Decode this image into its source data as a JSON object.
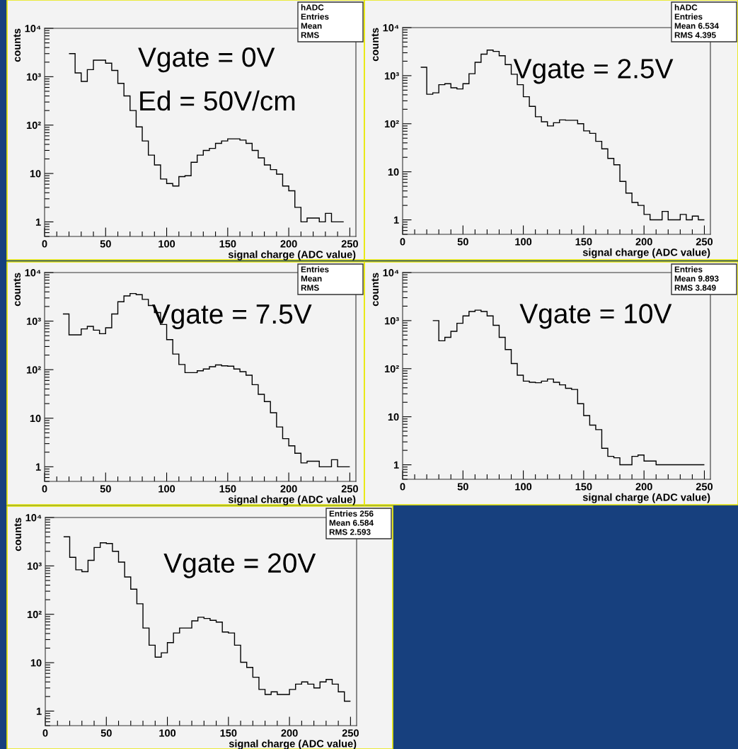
{
  "chart_data": [
    {
      "type": "histogram",
      "title": "Vgate = 0V",
      "subtitle": "Ed = 50V/cm",
      "xlabel": "signal charge (ADC value)",
      "ylabel": "counts",
      "log": "y",
      "grid": false,
      "legend": false,
      "color": "#000000",
      "bins": [
        20,
        25,
        30,
        35,
        40,
        45,
        50,
        55,
        60,
        65,
        70,
        75,
        80,
        85,
        90,
        95,
        100,
        105,
        110,
        115,
        120,
        125,
        130,
        135,
        140,
        145,
        150,
        155,
        160,
        165,
        170,
        175,
        180,
        185,
        190,
        195,
        200,
        205,
        210,
        215,
        220,
        225,
        230,
        235,
        240,
        245
      ],
      "values": [
        3000,
        1200,
        800,
        1400,
        2200,
        2200,
        1900,
        1350,
        730,
        400,
        200,
        92,
        47,
        24,
        15,
        7.7,
        6.2,
        5.5,
        8.6,
        9,
        17,
        24,
        30,
        33,
        42,
        47,
        52,
        52,
        49,
        42,
        30,
        21,
        15,
        12,
        9.7,
        5.5,
        4.4,
        2,
        1,
        1.2,
        1.2,
        1,
        1.5,
        1,
        1
      ],
      "xlim": [
        0,
        255
      ],
      "xticks": [
        0,
        50,
        100,
        150,
        200,
        250
      ],
      "ylim": [
        0.5,
        10000
      ],
      "yticks": [
        1,
        10,
        {
          "value": 100,
          "label": "10²"
        },
        {
          "value": 1000,
          "label": "10³"
        },
        {
          "value": 10000,
          "label": "10⁴"
        }
      ],
      "annotations": [
        "hADC",
        "Entries",
        "Mean",
        "RMS"
      ]
    },
    {
      "type": "histogram",
      "title": "Vgate = 2.5V",
      "xlabel": "signal charge (ADC value)",
      "ylabel": "counts",
      "log": "y",
      "grid": false,
      "legend": false,
      "color": "#000000",
      "bins": [
        15,
        20,
        25,
        30,
        35,
        40,
        45,
        50,
        55,
        60,
        65,
        70,
        75,
        80,
        85,
        90,
        95,
        100,
        105,
        110,
        115,
        120,
        125,
        130,
        135,
        140,
        145,
        150,
        155,
        160,
        165,
        170,
        175,
        180,
        185,
        190,
        195,
        200,
        205,
        210,
        215,
        220,
        225,
        230,
        235,
        240,
        245,
        250
      ],
      "values": [
        1500,
        410,
        440,
        650,
        680,
        560,
        530,
        680,
        1100,
        1900,
        2800,
        3400,
        3200,
        2600,
        1700,
        1070,
        650,
        365,
        230,
        140,
        110,
        90,
        105,
        120,
        118,
        118,
        100,
        71,
        63,
        43,
        30,
        19,
        14,
        6.3,
        3.6,
        2.3,
        2,
        1.3,
        1,
        1,
        1.5,
        1,
        1,
        1.3,
        1,
        1.2,
        1
      ],
      "xlim": [
        0,
        255
      ],
      "xticks": [
        0,
        50,
        100,
        150,
        200,
        250
      ],
      "ylim": [
        0.5,
        10000
      ],
      "yticks": [
        1,
        10,
        {
          "value": 100,
          "label": "10²"
        },
        {
          "value": 1000,
          "label": "10³"
        },
        {
          "value": 10000,
          "label": "10⁴"
        }
      ],
      "annotations": [
        "hADC",
        "Entries",
        "Mean 6.534",
        "RMS 4.395"
      ]
    },
    {
      "type": "histogram",
      "title": "Vgate = 7.5V",
      "xlabel": "signal charge (ADC value)",
      "ylabel": "counts",
      "log": "y",
      "grid": false,
      "legend": false,
      "color": "#000000",
      "bins": [
        15,
        20,
        25,
        30,
        35,
        40,
        45,
        50,
        55,
        60,
        65,
        70,
        75,
        80,
        85,
        90,
        95,
        100,
        105,
        110,
        115,
        120,
        125,
        130,
        135,
        140,
        145,
        150,
        155,
        160,
        165,
        170,
        175,
        180,
        185,
        190,
        195,
        200,
        205,
        210,
        215,
        220,
        225,
        230,
        235,
        240,
        245,
        250
      ],
      "values": [
        1400,
        520,
        520,
        690,
        780,
        650,
        550,
        730,
        1400,
        2500,
        3300,
        3700,
        3500,
        2800,
        2100,
        1500,
        850,
        415,
        210,
        128,
        87,
        87,
        95,
        103,
        115,
        125,
        120,
        118,
        103,
        91,
        77,
        49,
        31,
        22,
        13,
        6.6,
        3.8,
        2.7,
        1.9,
        1.2,
        1.3,
        1.3,
        1,
        1,
        1.4,
        1,
        1
      ],
      "xlim": [
        0,
        255
      ],
      "xticks": [
        0,
        50,
        100,
        150,
        200,
        250
      ],
      "ylim": [
        0.5,
        10000
      ],
      "yticks": [
        1,
        10,
        {
          "value": 100,
          "label": "10²"
        },
        {
          "value": 1000,
          "label": "10³"
        },
        {
          "value": 10000,
          "label": "10⁴"
        }
      ],
      "annotations": [
        "Entries",
        "Mean",
        "RMS"
      ]
    },
    {
      "type": "histogram",
      "title": "Vgate = 10V",
      "xlabel": "signal charge (ADC value)",
      "ylabel": "counts",
      "log": "y",
      "grid": false,
      "legend": false,
      "color": "#000000",
      "bins": [
        25,
        30,
        35,
        40,
        45,
        50,
        55,
        60,
        65,
        70,
        75,
        80,
        85,
        90,
        95,
        100,
        105,
        110,
        115,
        120,
        125,
        130,
        135,
        140,
        145,
        150,
        155,
        160,
        165,
        170,
        175,
        180,
        185,
        190,
        195,
        200,
        205,
        210,
        215,
        220,
        225,
        230,
        235,
        240,
        245,
        250
      ],
      "values": [
        1000,
        380,
        450,
        600,
        880,
        1250,
        1550,
        1650,
        1550,
        1250,
        800,
        450,
        250,
        128,
        73,
        55,
        52,
        51,
        55,
        61,
        52,
        46,
        39,
        37,
        18.7,
        10.6,
        6.7,
        5.4,
        2.2,
        1.5,
        1.4,
        1,
        1,
        1.5,
        1.6,
        1.2,
        1.2,
        1,
        1,
        1,
        1,
        1,
        1,
        1,
        1
      ],
      "xlim": [
        0,
        255
      ],
      "xticks": [
        0,
        50,
        100,
        150,
        200,
        250
      ],
      "ylim": [
        0.5,
        10000
      ],
      "yticks": [
        1,
        10,
        {
          "value": 100,
          "label": "10²"
        },
        {
          "value": 1000,
          "label": "10³"
        },
        {
          "value": 10000,
          "label": "10⁴"
        }
      ],
      "annotations": [
        "Entries",
        "Mean 9.893",
        "RMS 3.849"
      ]
    },
    {
      "type": "histogram",
      "title": "Vgate = 20V",
      "xlabel": "signal charge (ADC value)",
      "ylabel": "counts",
      "log": "y",
      "grid": false,
      "legend": false,
      "color": "#000000",
      "bins": [
        15,
        20,
        25,
        30,
        35,
        40,
        45,
        50,
        55,
        60,
        65,
        70,
        75,
        80,
        85,
        90,
        95,
        100,
        105,
        110,
        115,
        120,
        125,
        130,
        135,
        140,
        145,
        150,
        155,
        160,
        165,
        170,
        175,
        180,
        185,
        190,
        195,
        200,
        205,
        210,
        215,
        220,
        225,
        230,
        235,
        240,
        245,
        250
      ],
      "values": [
        4000,
        1500,
        830,
        760,
        1300,
        2400,
        3000,
        2900,
        2000,
        1200,
        590,
        330,
        165,
        52,
        23,
        13,
        16,
        26,
        41,
        52,
        52,
        73,
        87,
        82,
        75,
        69,
        43,
        41,
        23,
        10.2,
        8,
        5,
        2.8,
        2.2,
        2.5,
        2.2,
        2.2,
        2.8,
        3.6,
        4,
        3.6,
        3,
        4,
        4.5,
        3.6,
        2.5,
        1.6
      ],
      "xlim": [
        0,
        255
      ],
      "xticks": [
        0,
        50,
        100,
        150,
        200,
        250
      ],
      "ylim": [
        0.5,
        10000
      ],
      "yticks": [
        1,
        10,
        {
          "value": 100,
          "label": "10²"
        },
        {
          "value": 1000,
          "label": "10³"
        },
        {
          "value": 10000,
          "label": "10⁴"
        }
      ],
      "annotations": [
        "Entries 256",
        "Mean 6.584",
        "RMS 2.593"
      ]
    }
  ]
}
